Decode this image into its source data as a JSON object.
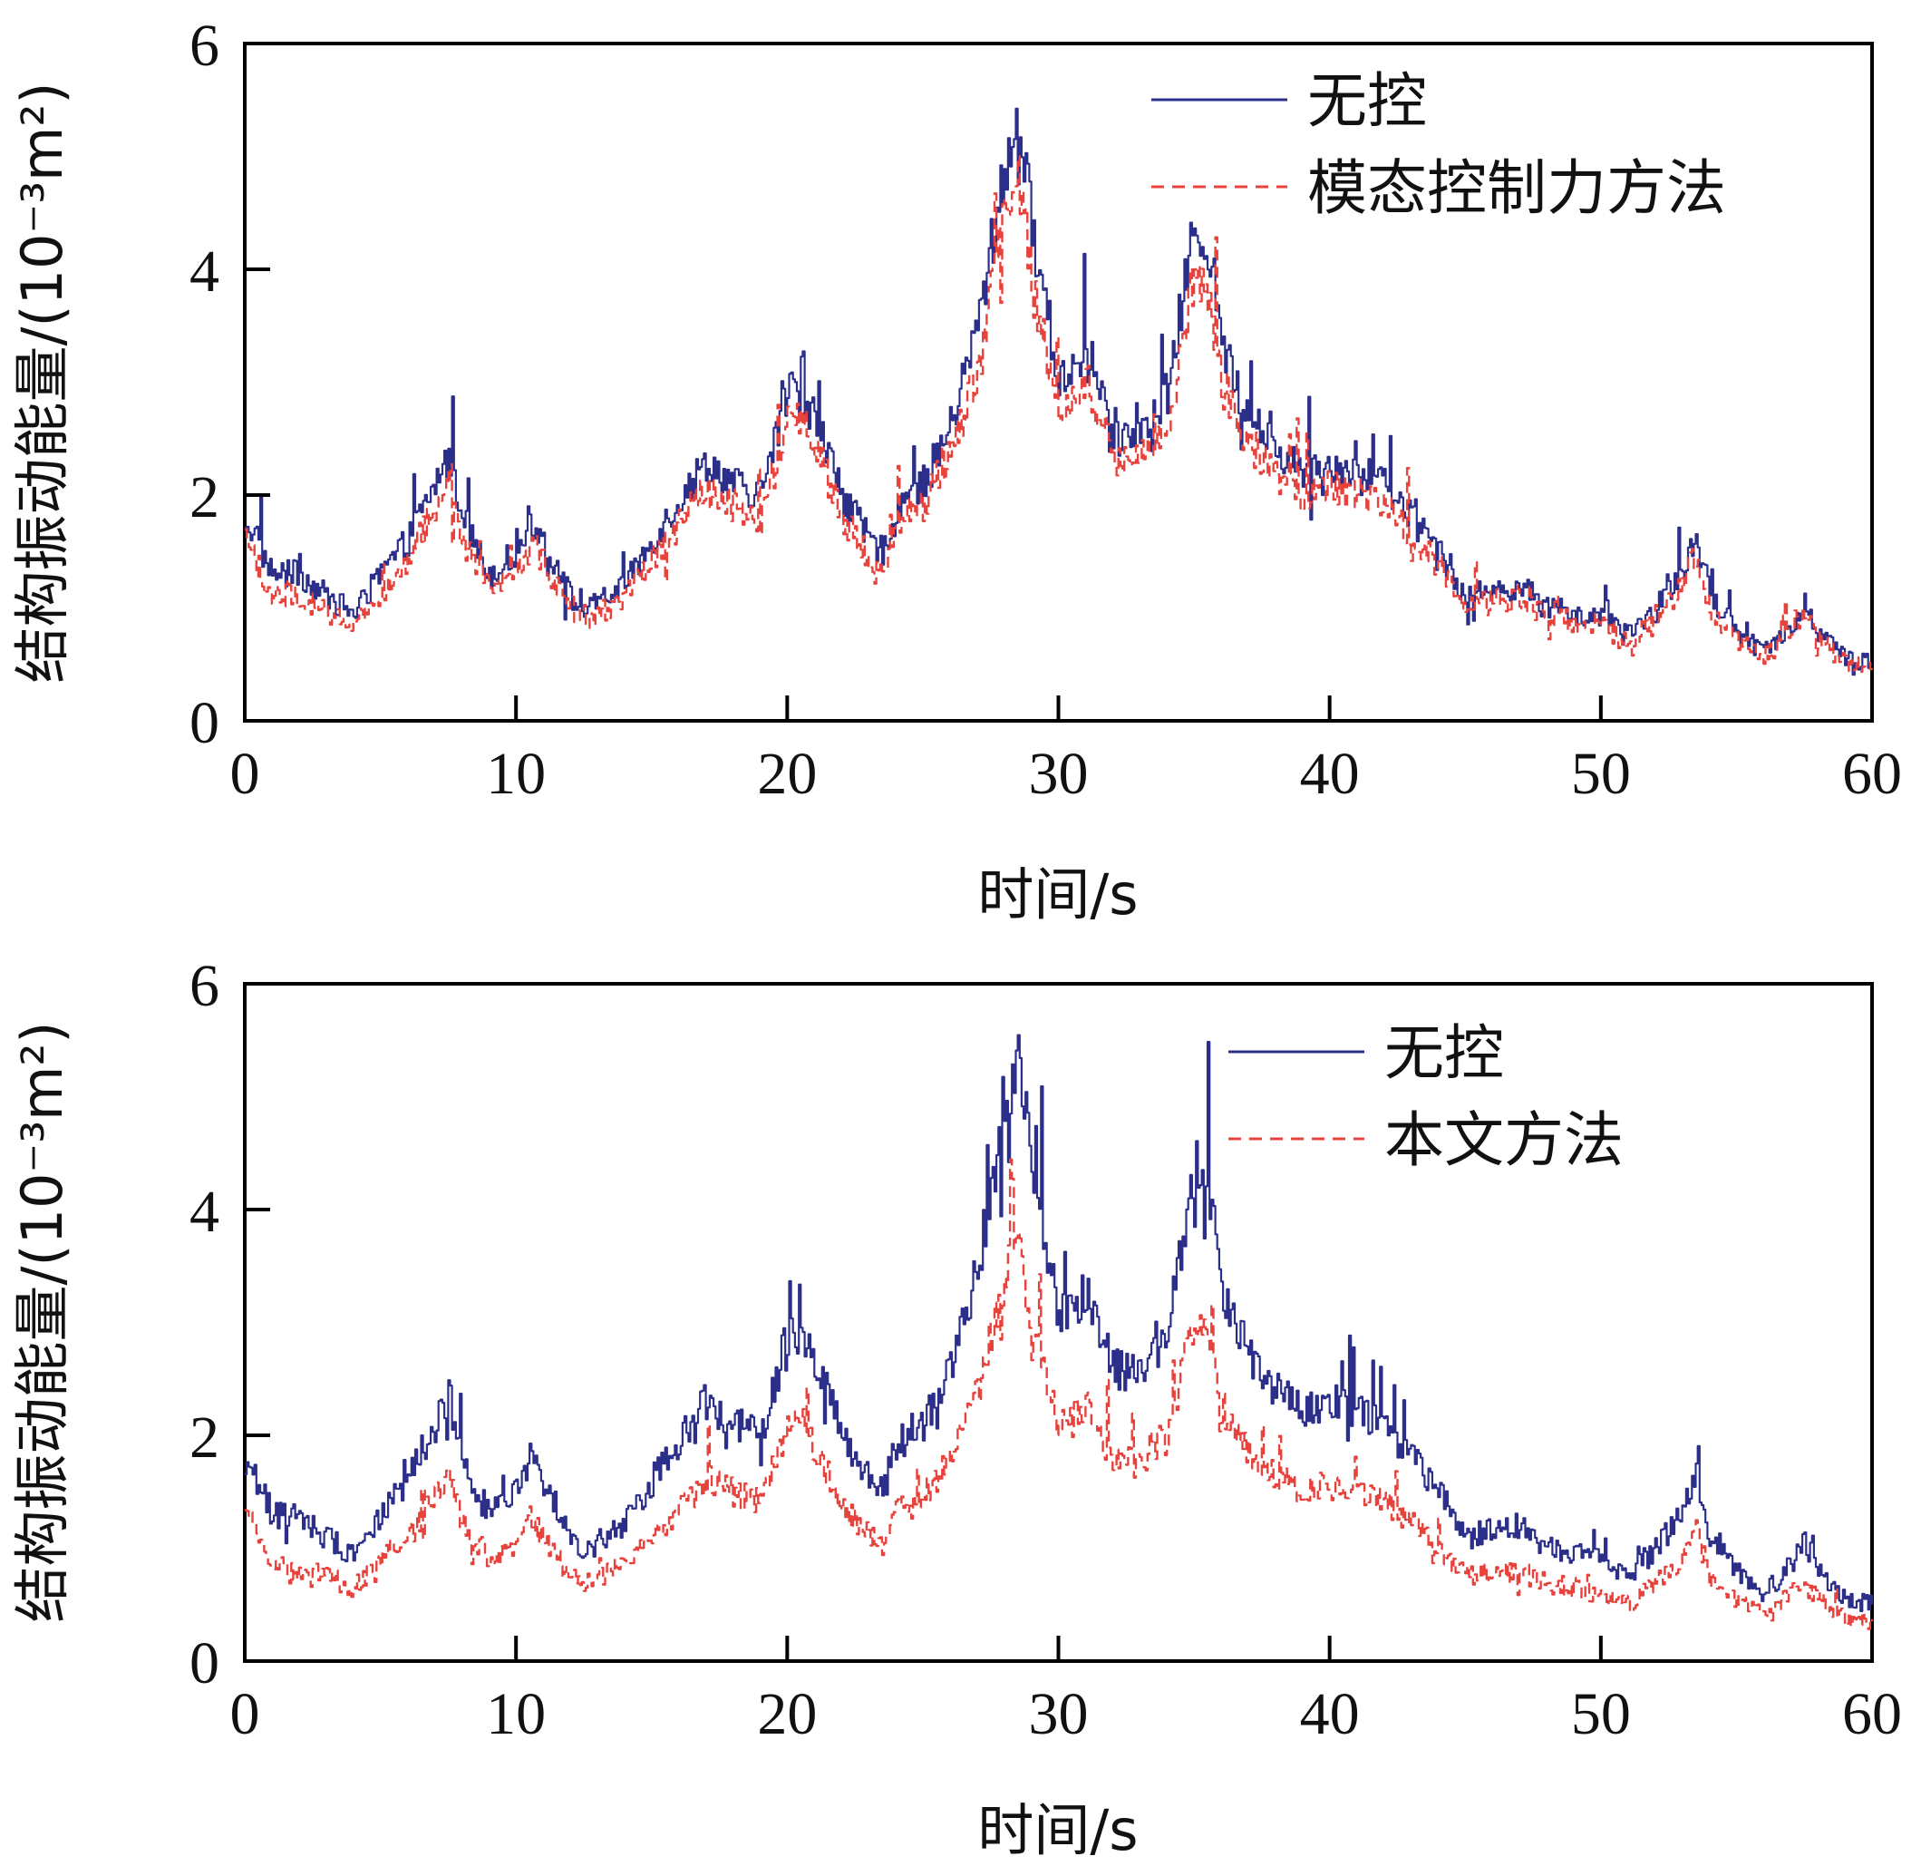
{
  "chart_data": [
    {
      "type": "line",
      "xlabel": "时间/s",
      "ylabel": "结构振动能量/(10⁻³m²)",
      "xlim": [
        0,
        60
      ],
      "ylim": [
        0,
        6
      ],
      "xticks": [
        0,
        10,
        20,
        30,
        40,
        50,
        60
      ],
      "yticks": [
        0,
        2,
        4,
        6
      ],
      "grid": false,
      "legend_position": "top-right",
      "x": [
        0,
        1,
        2,
        3,
        4,
        5,
        6,
        7,
        7.5,
        8,
        9,
        10,
        10.5,
        11,
        12,
        12.5,
        13,
        14,
        15,
        16,
        17,
        18,
        19,
        20,
        20.5,
        21,
        22,
        23,
        23.5,
        24,
        25,
        26,
        27,
        28,
        28.5,
        29,
        30,
        31,
        32,
        33,
        34,
        35,
        35.5,
        36,
        37,
        38,
        39,
        40,
        41,
        42,
        43,
        44,
        45,
        46,
        47,
        48,
        49,
        50,
        51,
        52,
        53,
        53.5,
        54,
        55,
        56,
        57,
        57.5,
        58,
        59,
        60
      ],
      "series": [
        {
          "name": "无控",
          "color": "#2b2f8a",
          "style": "solid",
          "values": [
            1.8,
            1.3,
            1.3,
            1.1,
            0.95,
            1.3,
            1.6,
            2.1,
            2.35,
            1.8,
            1.3,
            1.5,
            1.8,
            1.6,
            1.1,
            0.95,
            1.05,
            1.2,
            1.6,
            1.95,
            2.3,
            2.1,
            2.0,
            2.9,
            2.9,
            2.7,
            2.0,
            1.6,
            1.5,
            1.9,
            2.1,
            2.6,
            3.5,
            4.9,
            5.3,
            4.4,
            3.0,
            3.3,
            2.6,
            2.5,
            2.9,
            4.4,
            4.2,
            3.3,
            2.7,
            2.4,
            2.2,
            2.3,
            2.2,
            2.1,
            1.8,
            1.5,
            1.1,
            1.15,
            1.2,
            1.0,
            0.95,
            0.9,
            0.75,
            1.0,
            1.3,
            1.65,
            1.1,
            0.8,
            0.6,
            0.85,
            1.05,
            0.8,
            0.55,
            0.5
          ]
        },
        {
          "name": "模态控制力方法",
          "color": "#e8423c",
          "style": "dashed",
          "values": [
            1.6,
            1.1,
            1.1,
            0.95,
            0.85,
            1.1,
            1.4,
            1.9,
            2.1,
            1.6,
            1.15,
            1.3,
            1.6,
            1.4,
            1.0,
            0.85,
            0.95,
            1.1,
            1.45,
            1.75,
            2.05,
            1.9,
            1.8,
            2.65,
            2.65,
            2.45,
            1.8,
            1.45,
            1.35,
            1.7,
            1.9,
            2.4,
            3.1,
            4.4,
            4.8,
            3.9,
            2.7,
            3.0,
            2.35,
            2.3,
            2.6,
            4.0,
            3.8,
            3.0,
            2.45,
            2.2,
            2.0,
            2.1,
            2.0,
            1.9,
            1.65,
            1.35,
            1.0,
            1.05,
            1.1,
            0.92,
            0.88,
            0.85,
            0.68,
            0.92,
            1.2,
            1.5,
            1.0,
            0.72,
            0.55,
            0.8,
            0.98,
            0.74,
            0.5,
            0.45
          ]
        }
      ]
    },
    {
      "type": "line",
      "xlabel": "时间/s",
      "ylabel": "结构振动能量/(10⁻³m²)",
      "xlim": [
        0,
        60
      ],
      "ylim": [
        0,
        6
      ],
      "xticks": [
        0,
        10,
        20,
        30,
        40,
        50,
        60
      ],
      "yticks": [
        0,
        2,
        4,
        6
      ],
      "grid": false,
      "legend_position": "top-right",
      "x": [
        0,
        1,
        2,
        3,
        4,
        5,
        6,
        7,
        7.5,
        8,
        9,
        10,
        10.5,
        11,
        12,
        12.5,
        13,
        14,
        15,
        16,
        17,
        18,
        19,
        20,
        20.5,
        21,
        22,
        23,
        23.5,
        24,
        25,
        26,
        27,
        28,
        28.5,
        29,
        30,
        31,
        32,
        33,
        34,
        35,
        35.5,
        36,
        37,
        38,
        39,
        40,
        41,
        42,
        43,
        44,
        45,
        46,
        47,
        48,
        49,
        50,
        51,
        52,
        53,
        53.5,
        54,
        55,
        56,
        57,
        57.5,
        58,
        59,
        60
      ],
      "series": [
        {
          "name": "无控",
          "color": "#2b2f8a",
          "style": "solid",
          "values": [
            1.8,
            1.3,
            1.3,
            1.1,
            0.95,
            1.3,
            1.6,
            2.1,
            2.35,
            1.8,
            1.3,
            1.5,
            1.8,
            1.6,
            1.1,
            0.95,
            1.05,
            1.2,
            1.6,
            1.95,
            2.3,
            2.1,
            2.0,
            2.9,
            2.9,
            2.7,
            2.0,
            1.6,
            1.5,
            1.9,
            2.1,
            2.6,
            3.5,
            4.9,
            5.3,
            4.4,
            3.0,
            3.3,
            2.6,
            2.5,
            2.9,
            4.4,
            4.2,
            3.3,
            2.7,
            2.4,
            2.2,
            2.3,
            2.2,
            2.1,
            1.8,
            1.5,
            1.1,
            1.15,
            1.2,
            1.0,
            0.95,
            0.9,
            0.75,
            1.0,
            1.3,
            1.65,
            1.1,
            0.8,
            0.6,
            0.85,
            1.05,
            0.8,
            0.55,
            0.5
          ]
        },
        {
          "name": "本文方法",
          "color": "#e8423c",
          "style": "dashed",
          "values": [
            1.3,
            0.85,
            0.8,
            0.75,
            0.65,
            0.9,
            1.1,
            1.45,
            1.6,
            1.25,
            0.9,
            1.05,
            1.25,
            1.1,
            0.75,
            0.7,
            0.75,
            0.85,
            1.1,
            1.35,
            1.6,
            1.5,
            1.4,
            2.1,
            2.1,
            1.9,
            1.4,
            1.1,
            1.05,
            1.3,
            1.45,
            1.8,
            2.4,
            3.4,
            3.65,
            3.05,
            2.05,
            2.25,
            1.8,
            1.75,
            2.0,
            3.05,
            2.9,
            2.25,
            1.85,
            1.65,
            1.5,
            1.55,
            1.5,
            1.4,
            1.25,
            1.0,
            0.75,
            0.8,
            0.8,
            0.68,
            0.65,
            0.6,
            0.5,
            0.68,
            0.9,
            1.15,
            0.75,
            0.55,
            0.42,
            0.6,
            0.72,
            0.55,
            0.38,
            0.35
          ]
        }
      ]
    }
  ]
}
